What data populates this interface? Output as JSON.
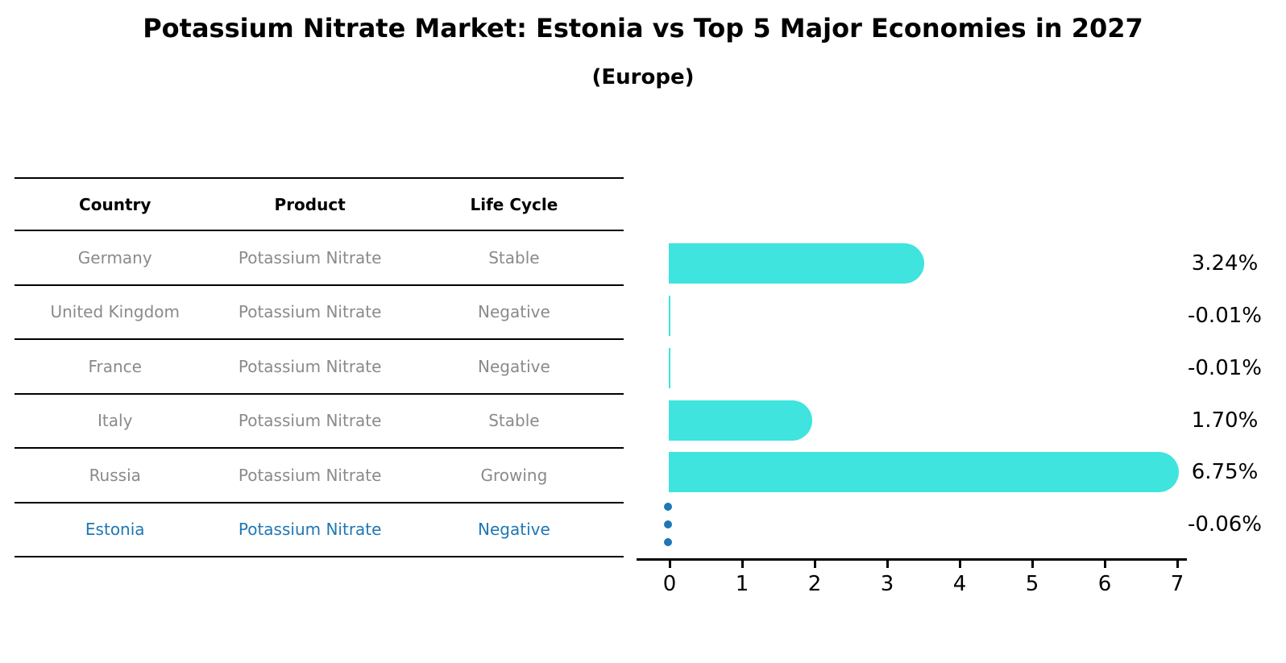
{
  "title": "Potassium Nitrate Market: Estonia vs Top 5 Major Economies in 2027",
  "subtitle": "(Europe)",
  "table": {
    "headers": [
      "Country",
      "Product",
      "Life Cycle"
    ],
    "rows": [
      {
        "country": "Germany",
        "product": "Potassium Nitrate",
        "life_cycle": "Stable",
        "highlight": false
      },
      {
        "country": "United Kingdom",
        "product": "Potassium Nitrate",
        "life_cycle": "Negative",
        "highlight": false
      },
      {
        "country": "France",
        "product": "Potassium Nitrate",
        "life_cycle": "Negative",
        "highlight": false
      },
      {
        "country": "Italy",
        "product": "Potassium Nitrate",
        "life_cycle": "Stable",
        "highlight": false
      },
      {
        "country": "Russia",
        "product": "Potassium Nitrate",
        "life_cycle": "Growing",
        "highlight": false
      },
      {
        "country": "Estonia",
        "product": "Potassium Nitrate",
        "life_cycle": "Negative",
        "highlight": true
      }
    ]
  },
  "chart_data": {
    "type": "bar",
    "orientation": "horizontal",
    "categories": [
      "Germany",
      "United Kingdom",
      "France",
      "Italy",
      "Russia",
      "Estonia"
    ],
    "values": [
      3.24,
      -0.01,
      -0.01,
      1.7,
      6.75,
      -0.06
    ],
    "labels": [
      "3.24%",
      "-0.01%",
      "-0.01%",
      "1.70%",
      "6.75%",
      "-0.06%"
    ],
    "xlim": [
      0,
      7
    ],
    "x_ticks": [
      0,
      1,
      2,
      3,
      4,
      5,
      6,
      7
    ],
    "grid": false,
    "legend": false,
    "highlight_index": 5,
    "bar_color": "#3EE4DD",
    "highlight_color": "#1f77b4"
  },
  "colors": {
    "bar": "#3EE4DD",
    "highlight": "#1f77b4",
    "table_text": "#8a8a8a",
    "line": "#000000"
  }
}
